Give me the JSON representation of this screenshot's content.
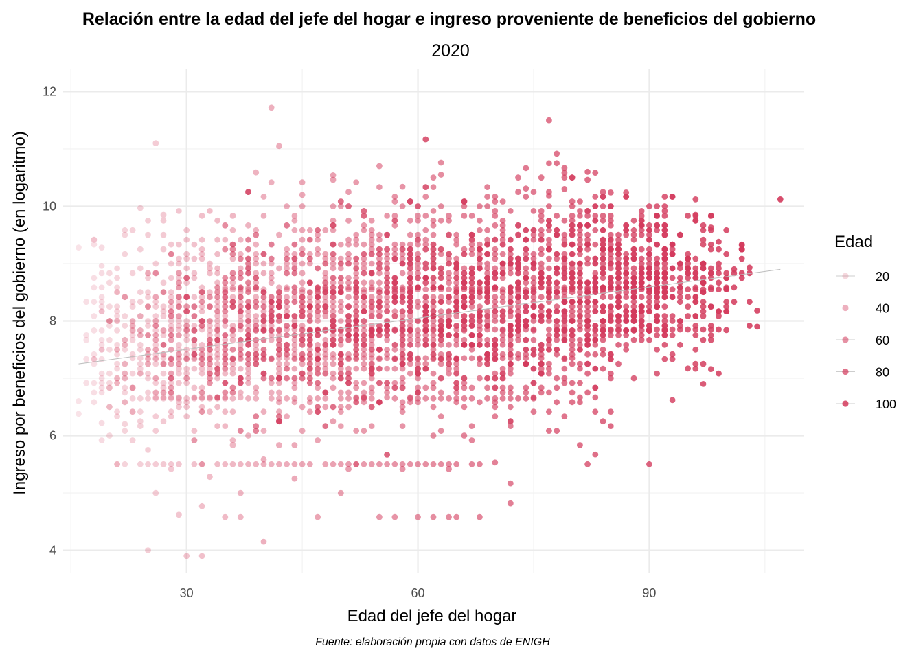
{
  "chart_data": {
    "type": "scatter",
    "title": "Relación entre la edad del jefe del hogar e ingreso proveniente de beneficios del gobierno",
    "subtitle": "2020",
    "xlabel": "Edad del jefe del hogar",
    "ylabel": "Ingreso por beneficios del gobierno (en logaritmo)",
    "caption": "Fuente: elaboración propia con datos de ENIGH",
    "xlim": [
      14,
      110
    ],
    "ylim": [
      3.6,
      12.4
    ],
    "x_ticks": [
      30,
      60,
      90
    ],
    "y_ticks": [
      4,
      6,
      8,
      10,
      12
    ],
    "grid": true,
    "point_color": "#d33a5c",
    "trend_line_color": "#bdbdbd",
    "alpha_encoding": "Edad",
    "legend": {
      "title": "Edad",
      "position": "right",
      "entries": [
        "20",
        "40",
        "60",
        "80",
        "100"
      ]
    },
    "trend_line": {
      "x": [
        16,
        107
      ],
      "y": [
        7.25,
        8.9
      ]
    },
    "points": [
      {
        "x": 16,
        "y": 9.28
      },
      {
        "x": 16,
        "y": 6.6
      },
      {
        "x": 16,
        "y": 6.38
      },
      {
        "x": 19,
        "y": 9.28
      },
      {
        "x": 19,
        "y": 8.96
      },
      {
        "x": 19,
        "y": 6.22
      },
      {
        "x": 20,
        "y": 6.0
      },
      {
        "x": 21,
        "y": 5.5
      },
      {
        "x": 22,
        "y": 6.2
      },
      {
        "x": 26,
        "y": 11.1
      },
      {
        "x": 24,
        "y": 9.97
      },
      {
        "x": 26,
        "y": 5.0
      },
      {
        "x": 27,
        "y": 9.85
      },
      {
        "x": 29,
        "y": 4.62
      },
      {
        "x": 30,
        "y": 3.9
      },
      {
        "x": 32,
        "y": 3.9
      },
      {
        "x": 32,
        "y": 4.77
      },
      {
        "x": 33,
        "y": 5.28
      },
      {
        "x": 35,
        "y": 4.58
      },
      {
        "x": 37,
        "y": 4.58
      },
      {
        "x": 39,
        "y": 10.59
      },
      {
        "x": 40,
        "y": 4.15
      },
      {
        "x": 41,
        "y": 11.72
      },
      {
        "x": 42,
        "y": 11.05
      },
      {
        "x": 45,
        "y": 10.2
      },
      {
        "x": 47,
        "y": 4.58
      },
      {
        "x": 49,
        "y": 10.54
      },
      {
        "x": 49,
        "y": 10.46
      },
      {
        "x": 51,
        "y": 10.25
      },
      {
        "x": 55,
        "y": 10.7
      },
      {
        "x": 55,
        "y": 4.58
      },
      {
        "x": 57,
        "y": 4.58
      },
      {
        "x": 58,
        "y": 10.34
      },
      {
        "x": 60,
        "y": 4.58
      },
      {
        "x": 62,
        "y": 4.58
      },
      {
        "x": 63,
        "y": 10.76
      },
      {
        "x": 63,
        "y": 10.55
      },
      {
        "x": 64,
        "y": 4.58
      },
      {
        "x": 65,
        "y": 4.58
      },
      {
        "x": 68,
        "y": 4.58
      },
      {
        "x": 70,
        "y": 5.53
      },
      {
        "x": 72,
        "y": 4.82
      },
      {
        "x": 74,
        "y": 10.31
      },
      {
        "x": 77,
        "y": 10.18
      },
      {
        "x": 79,
        "y": 10.3
      },
      {
        "x": 82,
        "y": 10.6
      },
      {
        "x": 82,
        "y": 10.46
      },
      {
        "x": 82,
        "y": 5.5
      },
      {
        "x": 83,
        "y": 5.67
      },
      {
        "x": 85,
        "y": 10.24
      },
      {
        "x": 87,
        "y": 10.24
      },
      {
        "x": 90,
        "y": 5.5
      },
      {
        "x": 90,
        "y": 7.83
      },
      {
        "x": 93,
        "y": 6.62
      },
      {
        "x": 95,
        "y": 7.17
      },
      {
        "x": 96,
        "y": 10.12
      },
      {
        "x": 96,
        "y": 9.85
      },
      {
        "x": 97,
        "y": 6.9
      },
      {
        "x": 98,
        "y": 7.16
      },
      {
        "x": 98,
        "y": 9.63
      },
      {
        "x": 99,
        "y": 9.38
      },
      {
        "x": 100,
        "y": 8.56
      },
      {
        "x": 100,
        "y": 7.84
      },
      {
        "x": 101,
        "y": 8.9
      },
      {
        "x": 102,
        "y": 9.32
      },
      {
        "x": 103,
        "y": 8.93
      },
      {
        "x": 104,
        "y": 8.18
      },
      {
        "x": 104,
        "y": 7.9
      },
      {
        "x": 107,
        "y": 10.12
      }
    ],
    "point_density": {
      "x_range": [
        17,
        104
      ],
      "y_core": 8.2,
      "y_spread": 0.9,
      "n_points": 4200,
      "seed": 7,
      "horizontal_bands": [
        {
          "y": 5.5,
          "x_range": [
            21,
            68
          ]
        },
        {
          "y": 6.65,
          "x_range": [
            23,
            75
          ]
        },
        {
          "y": 7.35,
          "x_range": [
            22,
            80
          ]
        },
        {
          "y": 7.85,
          "x_range": [
            28,
            100
          ]
        },
        {
          "y": 8.55,
          "x_range": [
            35,
            100
          ]
        }
      ]
    }
  }
}
